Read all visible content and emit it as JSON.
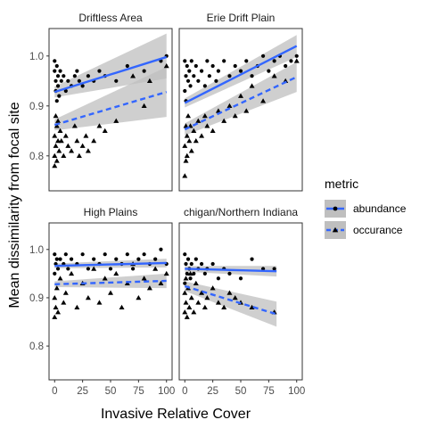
{
  "chart_data": {
    "type": "scatter",
    "xlabel": "Invasive Relative Cover",
    "ylabel": "Mean dissimilarity from focal site",
    "xlim": [
      -5,
      105
    ],
    "ylim": [
      0.73,
      1.055
    ],
    "x_ticks": [
      0,
      25,
      50,
      75,
      100
    ],
    "y_ticks": [
      0.8,
      0.9,
      1.0
    ],
    "x_tick_labels": [
      "0",
      "25",
      "50",
      "75",
      "100"
    ],
    "y_tick_labels": [
      "0.8",
      "0.9",
      "1.0"
    ],
    "grid": false,
    "legend_position": "right",
    "legend": {
      "title": "metric",
      "entries": [
        {
          "label": "abundance",
          "shape": "circle",
          "line": "solid"
        },
        {
          "label": "occurance",
          "shape": "triangle",
          "line": "dashed"
        }
      ]
    },
    "colors": {
      "line": "#3366ff",
      "band": "#bfbfbf",
      "point": "#000000",
      "strip_bg": "#ffffff",
      "panel_border": "#333333"
    },
    "panels": [
      {
        "title": "Driftless Area",
        "fits": [
          {
            "metric": "abundance",
            "x": [
              0,
              100
            ],
            "y": [
              0.928,
              0.998
            ],
            "band_lo": [
              0.917,
              0.955
            ],
            "band_hi": [
              0.939,
              1.045
            ]
          },
          {
            "metric": "occurance",
            "x": [
              0,
              100
            ],
            "y": [
              0.862,
              0.928
            ],
            "band_lo": [
              0.851,
              0.878
            ],
            "band_hi": [
              0.873,
              0.978
            ]
          }
        ],
        "points": {
          "abundance": {
            "x": [
              0,
              0,
              1,
              1,
              2,
              2,
              3,
              3,
              4,
              5,
              6,
              8,
              10,
              12,
              15,
              18,
              20,
              22,
              25,
              30,
              35,
              40,
              45,
              55,
              65,
              80,
              95,
              100
            ],
            "y": [
              0.99,
              0.97,
              0.95,
              0.93,
              0.91,
              0.98,
              0.96,
              0.94,
              0.92,
              0.97,
              0.95,
              0.96,
              0.93,
              0.95,
              0.94,
              0.96,
              0.97,
              0.95,
              0.94,
              0.96,
              0.95,
              0.97,
              0.96,
              0.95,
              0.98,
              0.97,
              0.99,
              1.0
            ]
          },
          "occurance": {
            "x": [
              0,
              0,
              0,
              1,
              1,
              2,
              2,
              3,
              3,
              4,
              5,
              6,
              8,
              10,
              12,
              15,
              18,
              20,
              22,
              25,
              28,
              30,
              35,
              40,
              45,
              55,
              70,
              80,
              85,
              100
            ],
            "y": [
              0.8,
              0.78,
              0.84,
              0.88,
              0.82,
              0.86,
              0.79,
              0.83,
              0.87,
              0.81,
              0.85,
              0.83,
              0.8,
              0.84,
              0.82,
              0.81,
              0.86,
              0.83,
              0.8,
              0.82,
              0.84,
              0.81,
              0.83,
              0.86,
              0.85,
              0.87,
              0.96,
              0.9,
              0.95,
              0.98
            ]
          }
        }
      },
      {
        "title": "Erie Drift Plain",
        "fits": [
          {
            "metric": "abundance",
            "x": [
              0,
              100
            ],
            "y": [
              0.906,
              1.02
            ],
            "band_lo": [
              0.897,
              0.998
            ],
            "band_hi": [
              0.915,
              1.042
            ]
          },
          {
            "metric": "occurance",
            "x": [
              0,
              100
            ],
            "y": [
              0.853,
              0.958
            ],
            "band_lo": [
              0.841,
              0.928
            ],
            "band_hi": [
              0.865,
              0.988
            ]
          }
        ],
        "points": {
          "abundance": {
            "x": [
              0,
              0,
              1,
              1,
              2,
              3,
              4,
              5,
              6,
              8,
              10,
              12,
              15,
              18,
              20,
              22,
              25,
              28,
              30,
              35,
              40,
              45,
              50,
              55,
              60,
              65,
              70,
              75,
              80,
              85,
              90,
              95,
              100
            ],
            "y": [
              0.99,
              0.93,
              0.96,
              0.91,
              0.98,
              0.95,
              0.97,
              0.94,
              0.99,
              0.96,
              0.98,
              0.95,
              0.97,
              0.94,
              0.99,
              0.96,
              0.98,
              0.95,
              0.97,
              0.99,
              0.96,
              0.98,
              0.97,
              0.99,
              0.96,
              0.98,
              1.0,
              0.97,
              0.99,
              1.0,
              0.98,
              0.99,
              1.0
            ]
          },
          "occurance": {
            "x": [
              0,
              0,
              1,
              1,
              2,
              2,
              3,
              4,
              5,
              6,
              8,
              10,
              12,
              15,
              18,
              20,
              25,
              30,
              35,
              40,
              45,
              50,
              55,
              60,
              70,
              80,
              90,
              100
            ],
            "y": [
              0.76,
              0.82,
              0.79,
              0.86,
              0.8,
              0.84,
              0.88,
              0.83,
              0.86,
              0.81,
              0.85,
              0.83,
              0.87,
              0.84,
              0.88,
              0.86,
              0.85,
              0.89,
              0.87,
              0.9,
              0.88,
              0.92,
              0.89,
              0.94,
              0.91,
              0.96,
              0.95,
              0.99
            ]
          }
        }
      },
      {
        "title": "High Plains",
        "fits": [
          {
            "metric": "abundance",
            "x": [
              0,
              100
            ],
            "y": [
              0.966,
              0.972
            ],
            "band_lo": [
              0.961,
              0.963
            ],
            "band_hi": [
              0.971,
              0.981
            ]
          },
          {
            "metric": "occurance",
            "x": [
              0,
              100
            ],
            "y": [
              0.928,
              0.935
            ],
            "band_lo": [
              0.922,
              0.92
            ],
            "band_hi": [
              0.934,
              0.95
            ]
          }
        ],
        "points": {
          "abundance": {
            "x": [
              0,
              0,
              1,
              2,
              3,
              5,
              8,
              10,
              12,
              15,
              20,
              25,
              30,
              35,
              40,
              45,
              50,
              55,
              60,
              65,
              70,
              75,
              80,
              85,
              90,
              95,
              100
            ],
            "y": [
              0.99,
              0.95,
              0.97,
              0.98,
              0.96,
              0.98,
              0.97,
              0.99,
              0.96,
              0.98,
              0.97,
              0.99,
              0.96,
              0.98,
              0.97,
              0.99,
              0.96,
              0.98,
              0.97,
              0.99,
              0.96,
              0.98,
              0.99,
              0.97,
              0.98,
              1.0,
              0.97
            ]
          },
          "occurance": {
            "x": [
              0,
              0,
              1,
              2,
              3,
              5,
              8,
              10,
              15,
              20,
              25,
              30,
              35,
              40,
              45,
              50,
              55,
              60,
              65,
              70,
              75,
              80,
              85,
              90,
              95,
              100
            ],
            "y": [
              0.86,
              0.9,
              0.88,
              0.92,
              0.87,
              0.94,
              0.89,
              0.91,
              0.95,
              0.88,
              0.93,
              0.9,
              0.96,
              0.89,
              0.94,
              0.91,
              0.95,
              0.88,
              0.93,
              0.97,
              0.9,
              0.94,
              0.92,
              0.96,
              0.93,
              0.95
            ]
          }
        }
      },
      {
        "title": "chigan/Northern Indiana",
        "fits": [
          {
            "metric": "abundance",
            "x": [
              0,
              82
            ],
            "y": [
              0.96,
              0.955
            ],
            "band_lo": [
              0.954,
              0.944
            ],
            "band_hi": [
              0.966,
              0.966
            ]
          },
          {
            "metric": "occurance",
            "x": [
              0,
              82
            ],
            "y": [
              0.924,
              0.866
            ],
            "band_lo": [
              0.914,
              0.84
            ],
            "band_hi": [
              0.934,
              0.892
            ]
          }
        ],
        "points": {
          "abundance": {
            "x": [
              0,
              0,
              1,
              2,
              3,
              4,
              5,
              6,
              8,
              10,
              12,
              15,
              18,
              20,
              25,
              30,
              35,
              40,
              50,
              60,
              70,
              80
            ],
            "y": [
              0.99,
              0.93,
              0.97,
              0.95,
              0.98,
              0.96,
              0.94,
              0.97,
              0.95,
              0.98,
              0.96,
              0.97,
              0.95,
              0.96,
              0.97,
              0.94,
              0.96,
              0.95,
              0.94,
              0.98,
              0.96,
              0.96
            ]
          },
          "occurance": {
            "x": [
              0,
              0,
              1,
              1,
              2,
              3,
              4,
              5,
              6,
              8,
              10,
              12,
              15,
              18,
              20,
              25,
              30,
              35,
              40,
              45,
              50,
              60,
              80
            ],
            "y": [
              0.87,
              0.91,
              0.89,
              0.94,
              0.86,
              0.92,
              0.88,
              0.95,
              0.9,
              0.87,
              0.93,
              0.89,
              0.91,
              0.88,
              0.9,
              0.92,
              0.89,
              0.88,
              0.91,
              0.9,
              0.89,
              0.88,
              0.87
            ]
          }
        }
      }
    ]
  }
}
